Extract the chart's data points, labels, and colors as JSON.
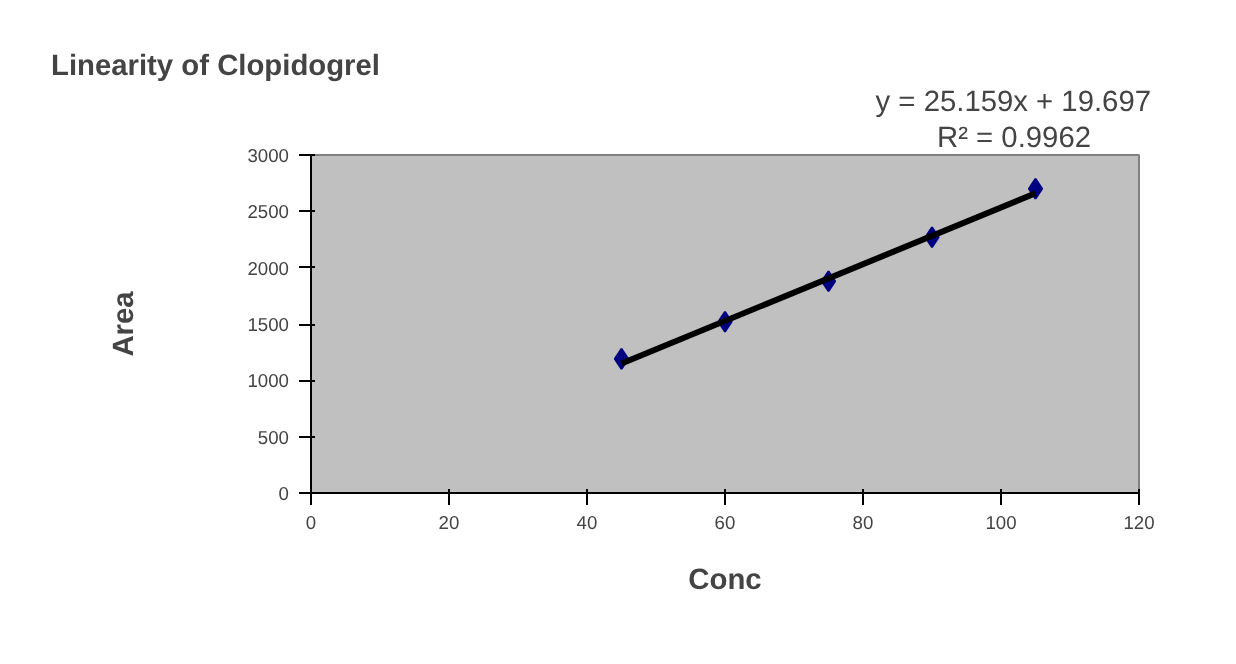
{
  "chart_data": {
    "type": "scatter",
    "title": "Linearity of Clopidogrel",
    "xlabel": "Conc",
    "ylabel": "Area",
    "annotations": [
      "y = 25.159x + 19.697",
      "R² = 0.9962"
    ],
    "x": [
      45,
      60,
      75,
      90,
      105
    ],
    "series": [
      {
        "color": "#000080",
        "marker": "diamond",
        "values": [
          1190,
          1520,
          1880,
          2270,
          2700
        ]
      },
      {
        "type": "line",
        "color": "#000000",
        "line_style": "solid",
        "x": [
          45,
          105
        ],
        "values": [
          1150,
          2660
        ]
      }
    ],
    "xlim": [
      0,
      120
    ],
    "xticks": [
      0,
      20,
      40,
      60,
      80,
      100,
      120
    ],
    "ylim": [
      0,
      3000
    ],
    "yticks": [
      0,
      500,
      1000,
      1500,
      2000,
      2500,
      3000
    ],
    "grid": false
  }
}
